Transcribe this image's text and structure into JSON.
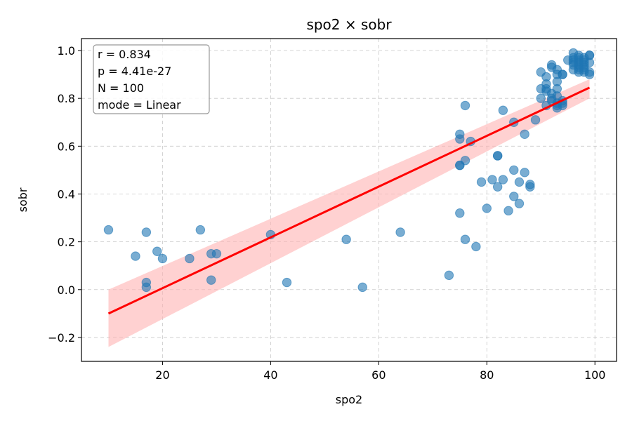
{
  "chart_data": {
    "type": "scatter",
    "title": "spo2 × sobr",
    "xlabel": "spo2",
    "ylabel": "sobr",
    "xlim": [
      5,
      104
    ],
    "ylim": [
      -0.3,
      1.05
    ],
    "xticks": [
      20,
      40,
      60,
      80,
      100
    ],
    "xtick_labels": [
      "20",
      "40",
      "60",
      "80",
      "100"
    ],
    "yticks": [
      -0.2,
      0.0,
      0.2,
      0.4,
      0.6,
      0.8,
      1.0
    ],
    "ytick_labels": [
      "−0.2",
      "0.0",
      "0.2",
      "0.4",
      "0.6",
      "0.8",
      "1.0"
    ],
    "grid": true,
    "colors": {
      "points": "#1f77b4",
      "fit": "#ff0000",
      "band": "#ffb3b3"
    },
    "stats": [
      "r = 0.834",
      "p = 4.41e-27",
      "N = 100",
      "mode = Linear"
    ],
    "fit": {
      "x": [
        10,
        99
      ],
      "y": [
        -0.1,
        0.845
      ]
    },
    "band": {
      "x": [
        10,
        99
      ],
      "lower": [
        -0.24,
        0.8
      ],
      "upper": [
        0.0,
        0.88
      ]
    },
    "points": [
      [
        10,
        0.25
      ],
      [
        15,
        0.14
      ],
      [
        17,
        0.24
      ],
      [
        17,
        0.03
      ],
      [
        17,
        0.01
      ],
      [
        19,
        0.16
      ],
      [
        20,
        0.13
      ],
      [
        25,
        0.13
      ],
      [
        27,
        0.25
      ],
      [
        29,
        0.15
      ],
      [
        29,
        0.04
      ],
      [
        30,
        0.15
      ],
      [
        40,
        0.23
      ],
      [
        43,
        0.03
      ],
      [
        54,
        0.21
      ],
      [
        57,
        0.01
      ],
      [
        64,
        0.24
      ],
      [
        73,
        0.06
      ],
      [
        75,
        0.65
      ],
      [
        75,
        0.63
      ],
      [
        75,
        0.52
      ],
      [
        75,
        0.52
      ],
      [
        75,
        0.32
      ],
      [
        76,
        0.77
      ],
      [
        76,
        0.54
      ],
      [
        76,
        0.21
      ],
      [
        77,
        0.62
      ],
      [
        78,
        0.18
      ],
      [
        79,
        0.45
      ],
      [
        80,
        0.34
      ],
      [
        81,
        0.46
      ],
      [
        82,
        0.56
      ],
      [
        82,
        0.56
      ],
      [
        82,
        0.43
      ],
      [
        83,
        0.75
      ],
      [
        83,
        0.46
      ],
      [
        84,
        0.33
      ],
      [
        85,
        0.7
      ],
      [
        85,
        0.5
      ],
      [
        85,
        0.39
      ],
      [
        86,
        0.45
      ],
      [
        86,
        0.36
      ],
      [
        87,
        0.65
      ],
      [
        87,
        0.49
      ],
      [
        88,
        0.44
      ],
      [
        88,
        0.43
      ],
      [
        90,
        0.91
      ],
      [
        90,
        0.84
      ],
      [
        90,
        0.8
      ],
      [
        91,
        0.89
      ],
      [
        91,
        0.86
      ],
      [
        91,
        0.84
      ],
      [
        91,
        0.83
      ],
      [
        91,
        0.77
      ],
      [
        92,
        0.94
      ],
      [
        92,
        0.93
      ],
      [
        92,
        0.82
      ],
      [
        92,
        0.8
      ],
      [
        93,
        0.92
      ],
      [
        93,
        0.9
      ],
      [
        93,
        0.87
      ],
      [
        93,
        0.84
      ],
      [
        93,
        0.81
      ],
      [
        93,
        0.77
      ],
      [
        93,
        0.76
      ],
      [
        94,
        0.9
      ],
      [
        94,
        0.9
      ],
      [
        94,
        0.79
      ],
      [
        94,
        0.78
      ],
      [
        94,
        0.77
      ],
      [
        96,
        0.99
      ],
      [
        96,
        0.97
      ],
      [
        96,
        0.96
      ],
      [
        96,
        0.95
      ],
      [
        96,
        0.92
      ],
      [
        97,
        0.97
      ],
      [
        97,
        0.96
      ],
      [
        97,
        0.95
      ],
      [
        97,
        0.94
      ],
      [
        97,
        0.93
      ],
      [
        97,
        0.91
      ],
      [
        98,
        0.96
      ],
      [
        98,
        0.95
      ],
      [
        98,
        0.94
      ],
      [
        98,
        0.93
      ],
      [
        98,
        0.91
      ],
      [
        99,
        0.98
      ],
      [
        99,
        0.98
      ],
      [
        99,
        0.95
      ],
      [
        99,
        0.91
      ],
      [
        99,
        0.9
      ],
      [
        96,
        0.94
      ],
      [
        97,
        0.98
      ],
      [
        98,
        0.97
      ],
      [
        95,
        0.96
      ],
      [
        97,
        0.92
      ],
      [
        98,
        0.92
      ],
      [
        92,
        0.79
      ],
      [
        89,
        0.71
      ],
      [
        93,
        0.78
      ]
    ]
  }
}
